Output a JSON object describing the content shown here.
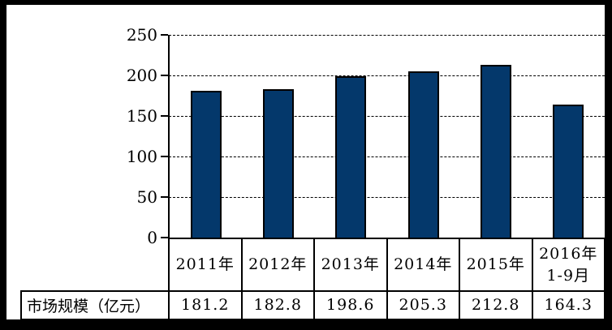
{
  "frame": {
    "border_color": "#000000",
    "background_color": "#ffffff"
  },
  "chart_data": {
    "type": "bar",
    "title": "",
    "categories": [
      "2011年",
      "2012年",
      "2013年",
      "2014年",
      "2015年",
      "2016年\n1-9月"
    ],
    "values": [
      181.2,
      182.8,
      198.6,
      205.3,
      212.8,
      164.3
    ],
    "values_display": [
      "181.2",
      "182.8",
      "198.6",
      "205.3",
      "212.8",
      "164.3"
    ],
    "series_label": "市场规模（亿元）",
    "xlabel": "",
    "ylabel": "",
    "ylim": [
      0,
      250
    ],
    "ytick_interval": 50,
    "yticks": [
      "250",
      "200",
      "150",
      "100",
      "50",
      "0"
    ],
    "grid": "horizontal dashed",
    "legend_position": "none (data table below x-axis)",
    "bar_color": "#04386B",
    "bar_border_color": "#000000"
  }
}
